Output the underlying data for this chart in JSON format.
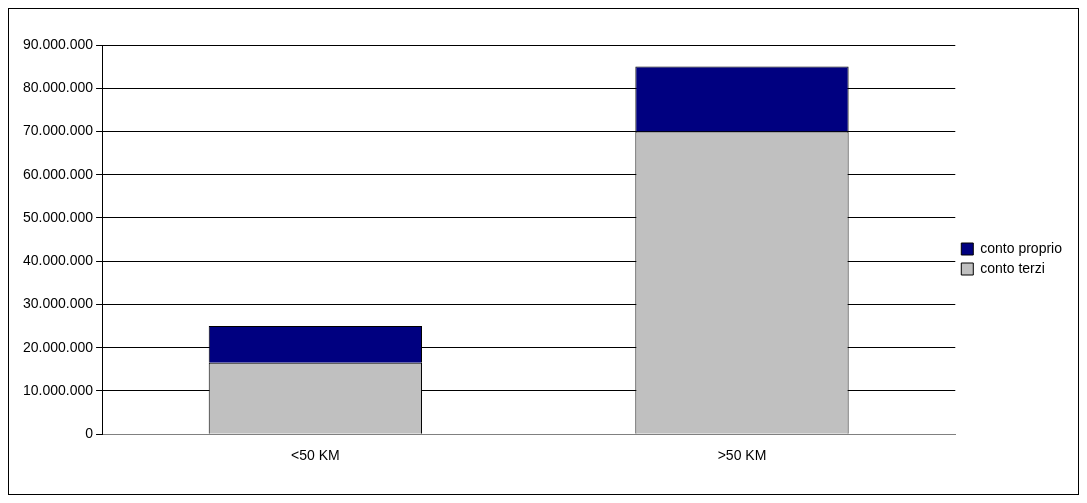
{
  "chart_data": {
    "type": "bar",
    "stacked": true,
    "categories": [
      "<50 KM",
      ">50 KM"
    ],
    "series": [
      {
        "name": "conto terzi",
        "color": "#c0c0c0",
        "values": [
          16500000,
          70000000
        ]
      },
      {
        "name": "conto proprio",
        "color": "#000080",
        "values": [
          8500000,
          15000000
        ]
      }
    ],
    "ylim": [
      0,
      90000000
    ],
    "yticks": [
      0,
      {
        "value": 10000000,
        "label": "10.000.000"
      },
      {
        "value": 20000000,
        "label": "20.000.000"
      },
      {
        "value": 30000000,
        "label": "30.000.000"
      },
      {
        "value": 40000000,
        "label": "40.000.000"
      },
      {
        "value": 50000000,
        "label": "50.000.000"
      },
      {
        "value": 60000000,
        "label": "60.000.000"
      },
      {
        "value": 70000000,
        "label": "70.000.000"
      },
      {
        "value": 80000000,
        "label": "80.000.000"
      },
      {
        "value": 90000000,
        "label": "90.000.000"
      }
    ],
    "grid": "y",
    "legend": "right"
  }
}
